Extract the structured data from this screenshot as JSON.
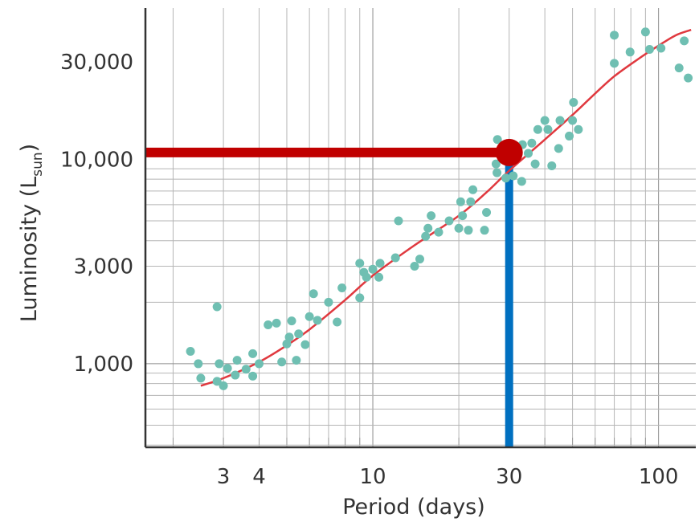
{
  "chart_data": {
    "type": "scatter",
    "title": "",
    "xlabel": "Period (days)",
    "ylabel": "Luminosity (L",
    "ylabel_sub": "sun",
    "ylabel_close": ")",
    "x_scale": "log",
    "y_scale": "log",
    "xlim": [
      1.6,
      135
    ],
    "ylim": [
      390,
      55000
    ],
    "x_ticks": [
      3,
      4,
      10,
      30,
      100
    ],
    "x_tick_labels": [
      "3",
      "4",
      "10",
      "30",
      "100"
    ],
    "y_ticks": [
      1000,
      3000,
      10000,
      30000
    ],
    "y_tick_labels": [
      "1,000",
      "3,000",
      "10,000",
      "30,000"
    ],
    "grid": true,
    "colors": {
      "points": "#6fbfb2",
      "fit_line": "#e0393f",
      "highlight_point": "#c00000",
      "horizontal_guide": "#c00000",
      "vertical_guide": "#0070c0",
      "axis": "#333333"
    },
    "highlight": {
      "x": 30,
      "y": 10800
    },
    "series": [
      {
        "kind": "scatter",
        "points": [
          [
            2.3,
            1150
          ],
          [
            2.45,
            1000
          ],
          [
            2.5,
            850
          ],
          [
            2.85,
            1900
          ],
          [
            2.85,
            820
          ],
          [
            2.9,
            1000
          ],
          [
            3.0,
            780
          ],
          [
            3.1,
            950
          ],
          [
            3.3,
            880
          ],
          [
            3.35,
            1040
          ],
          [
            3.6,
            940
          ],
          [
            3.8,
            1120
          ],
          [
            3.8,
            870
          ],
          [
            4.0,
            1000
          ],
          [
            4.3,
            1550
          ],
          [
            4.6,
            1580
          ],
          [
            4.8,
            1020
          ],
          [
            5.0,
            1250
          ],
          [
            5.1,
            1350
          ],
          [
            5.2,
            1620
          ],
          [
            5.4,
            1040
          ],
          [
            5.5,
            1400
          ],
          [
            5.8,
            1240
          ],
          [
            6.0,
            1700
          ],
          [
            6.2,
            2200
          ],
          [
            6.4,
            1630
          ],
          [
            7.0,
            2000
          ],
          [
            7.5,
            1600
          ],
          [
            7.8,
            2350
          ],
          [
            9.0,
            2100
          ],
          [
            9.0,
            3100
          ],
          [
            9.3,
            2800
          ],
          [
            9.5,
            2650
          ],
          [
            10.0,
            2900
          ],
          [
            10.5,
            2650
          ],
          [
            10.6,
            3100
          ],
          [
            12.0,
            3300
          ],
          [
            12.3,
            5000
          ],
          [
            14.0,
            3000
          ],
          [
            14.6,
            3250
          ],
          [
            15.3,
            4200
          ],
          [
            15.6,
            4600
          ],
          [
            16.0,
            5300
          ],
          [
            17.0,
            4400
          ],
          [
            18.5,
            5000
          ],
          [
            20.0,
            4600
          ],
          [
            20.3,
            6200
          ],
          [
            20.6,
            5300
          ],
          [
            21.6,
            4500
          ],
          [
            22.0,
            6200
          ],
          [
            22.4,
            7100
          ],
          [
            24.6,
            4500
          ],
          [
            25.0,
            5500
          ],
          [
            27.0,
            9500
          ],
          [
            27.2,
            8600
          ],
          [
            27.3,
            12500
          ],
          [
            29.2,
            8100
          ],
          [
            31.0,
            8300
          ],
          [
            33.2,
            7800
          ],
          [
            33.4,
            11800
          ],
          [
            35.0,
            10700
          ],
          [
            36.0,
            12000
          ],
          [
            37.0,
            9500
          ],
          [
            37.8,
            14000
          ],
          [
            40.0,
            15500
          ],
          [
            41.0,
            14000
          ],
          [
            42.3,
            9300
          ],
          [
            44.7,
            11300
          ],
          [
            45.2,
            15500
          ],
          [
            48.7,
            13000
          ],
          [
            50.0,
            15500
          ],
          [
            50.4,
            19000
          ],
          [
            52.4,
            14000
          ],
          [
            70.0,
            40500
          ],
          [
            70.0,
            29500
          ],
          [
            79.5,
            33500
          ],
          [
            90.0,
            42000
          ],
          [
            93.0,
            34500
          ],
          [
            102.0,
            35000
          ],
          [
            118.0,
            28000
          ],
          [
            123.0,
            38000
          ],
          [
            127.0,
            25000
          ]
        ]
      },
      {
        "kind": "line",
        "points": [
          [
            2.5,
            780
          ],
          [
            3.0,
            850
          ],
          [
            4.0,
            1020
          ],
          [
            5.0,
            1230
          ],
          [
            6.0,
            1470
          ],
          [
            8.0,
            2050
          ],
          [
            10.0,
            2700
          ],
          [
            14.0,
            3800
          ],
          [
            20.0,
            5300
          ],
          [
            25.0,
            6900
          ],
          [
            30.0,
            8800
          ],
          [
            40.0,
            12500
          ],
          [
            50.0,
            16500
          ],
          [
            60.0,
            21000
          ],
          [
            70.0,
            25500
          ],
          [
            85.0,
            31000
          ],
          [
            100.0,
            36000
          ],
          [
            115.0,
            40500
          ],
          [
            130.0,
            43000
          ]
        ]
      }
    ]
  }
}
